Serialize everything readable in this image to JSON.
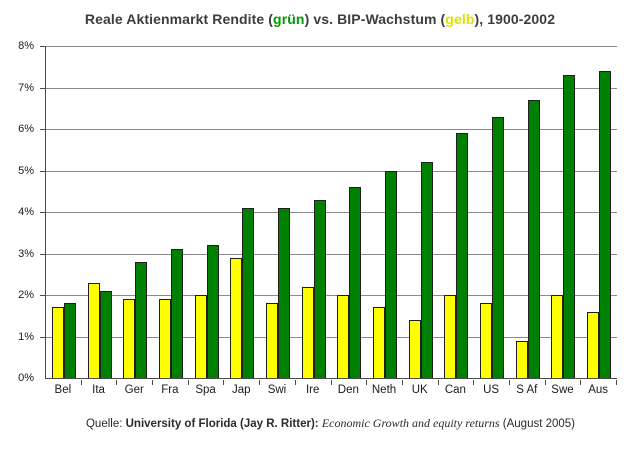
{
  "title": {
    "part1": "Reale Aktienmarkt Rendite (",
    "green_word": "grün",
    "part2": ") vs. BIP-Wachstum (",
    "yellow_word": "gelb",
    "part3": "), 1900-2002"
  },
  "footer": {
    "prefix": "Quelle: ",
    "source_bold": "University of Florida (Jay R. Ritter): ",
    "work_italic": "Economic Growth and equity returns",
    "suffix": " (August 2005)"
  },
  "colors": {
    "green_bar": "#008000",
    "yellow_bar": "#ffff00",
    "bar_border": "#1f1f1f",
    "gridline": "#8a8a8a",
    "axis": "#4a4a4a",
    "title_green": "#009900",
    "title_yellow": "#e0e000",
    "title_text": "#3d3d3d"
  },
  "chart_data": {
    "type": "bar",
    "title": "Reale Aktienmarkt Rendite (grün) vs. BIP-Wachstum (gelb), 1900-2002",
    "categories": [
      "Bel",
      "Ita",
      "Ger",
      "Fra",
      "Spa",
      "Jap",
      "Swi",
      "Ire",
      "Den",
      "Neth",
      "UK",
      "Can",
      "US",
      "S Af",
      "Swe",
      "Aus"
    ],
    "series": [
      {
        "name": "BIP-Wachstum (gelb)",
        "color": "#ffff00",
        "values": [
          1.7,
          2.3,
          1.9,
          1.9,
          2.0,
          2.9,
          1.8,
          2.2,
          2.0,
          1.7,
          1.4,
          2.0,
          1.8,
          0.9,
          2.0,
          1.6
        ]
      },
      {
        "name": "Reale Aktienmarkt Rendite (grün)",
        "color": "#008000",
        "values": [
          1.8,
          2.1,
          2.8,
          3.1,
          3.2,
          4.1,
          4.1,
          4.3,
          4.6,
          5.0,
          5.2,
          5.9,
          6.3,
          6.7,
          7.3,
          7.4
        ]
      }
    ],
    "xlabel": "",
    "ylabel": "",
    "ylim": [
      0,
      8
    ],
    "ytick_step": 1,
    "ytick_labels": [
      "0%",
      "1%",
      "2%",
      "3%",
      "4%",
      "5%",
      "6%",
      "7%",
      "8%"
    ],
    "grid": true,
    "legend_position": "in-title"
  }
}
